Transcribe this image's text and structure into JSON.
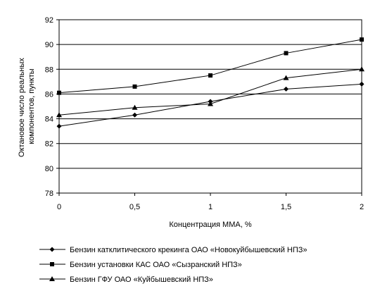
{
  "chart_data": {
    "type": "line",
    "title": "",
    "xlabel": "Концентрация ММА, %",
    "ylabel": "Октановое число реальных компонентов, пункты",
    "ylabel_lines": [
      "Октановое число реальных",
      "компонентов, пункты"
    ],
    "x": [
      0,
      0.5,
      1,
      1.5,
      2
    ],
    "x_tick_labels": [
      "0",
      "0,5",
      "1",
      "1,5",
      "2"
    ],
    "xlim": [
      0,
      2
    ],
    "ylim": [
      78,
      92
    ],
    "y_ticks": [
      78,
      80,
      82,
      84,
      86,
      88,
      90,
      92
    ],
    "y_tick_labels": [
      "78",
      "80",
      "82",
      "84",
      "86",
      "88",
      "90",
      "92"
    ],
    "grid": "horizontal",
    "legend_position": "bottom",
    "series": [
      {
        "name": "Бензин катклитического крекинга ОАО «Новокуйбышевский НПЗ»",
        "marker": "diamond",
        "values": [
          83.4,
          84.3,
          85.4,
          86.4,
          86.8
        ]
      },
      {
        "name": "Бензин установки КАС ОАО «Сызранский НПЗ»",
        "marker": "square",
        "values": [
          86.1,
          86.6,
          87.5,
          89.3,
          90.4
        ]
      },
      {
        "name": "Бензин ГФУ ОАО «Куйбышевский НПЗ»",
        "marker": "triangle",
        "values": [
          84.3,
          84.9,
          85.2,
          87.3,
          88.0
        ]
      }
    ]
  }
}
